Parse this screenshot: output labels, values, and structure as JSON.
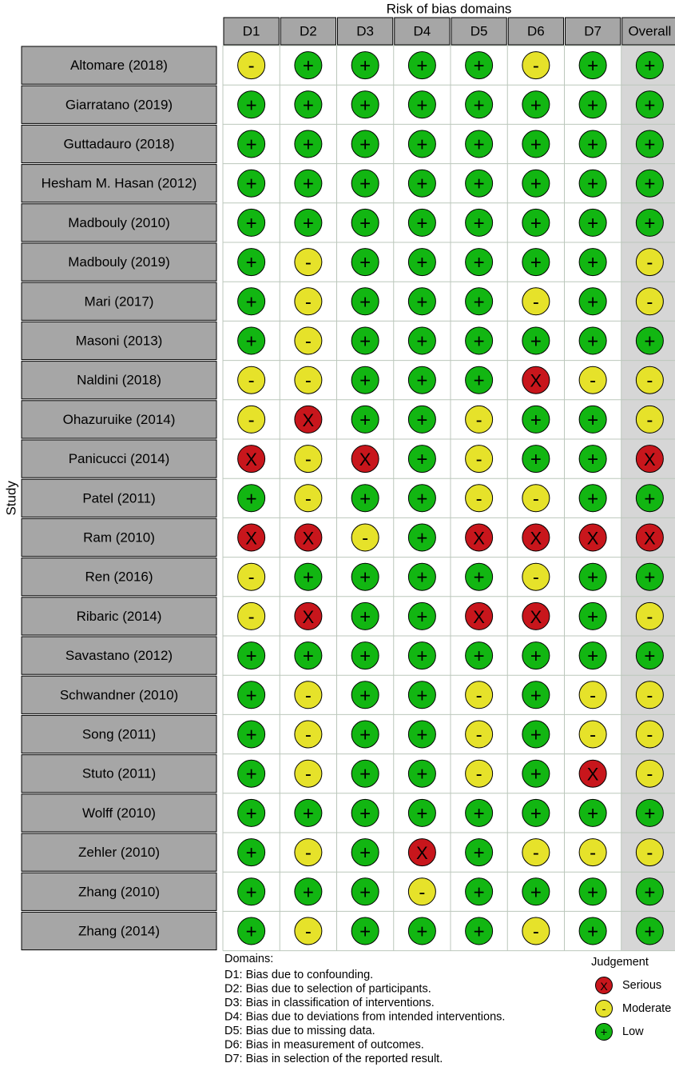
{
  "chart_data": {
    "type": "table",
    "title": "Risk of bias domains",
    "ylabel": "Study",
    "columns": [
      "D1",
      "D2",
      "D3",
      "D4",
      "D5",
      "D6",
      "D7",
      "Overall"
    ],
    "judgements": {
      "L": {
        "label": "Low",
        "symbol": "+",
        "color": "#12b612"
      },
      "M": {
        "label": "Moderate",
        "symbol": "-",
        "color": "#e6e22a"
      },
      "S": {
        "label": "Serious",
        "symbol": "X",
        "color": "#c8161c"
      }
    },
    "rows": [
      {
        "study": "Altomare (2018)",
        "values": [
          "M",
          "L",
          "L",
          "L",
          "L",
          "M",
          "L",
          "L"
        ]
      },
      {
        "study": "Giarratano (2019)",
        "values": [
          "L",
          "L",
          "L",
          "L",
          "L",
          "L",
          "L",
          "L"
        ]
      },
      {
        "study": "Guttadauro (2018)",
        "values": [
          "L",
          "L",
          "L",
          "L",
          "L",
          "L",
          "L",
          "L"
        ]
      },
      {
        "study": "Hesham M. Hasan (2012)",
        "values": [
          "L",
          "L",
          "L",
          "L",
          "L",
          "L",
          "L",
          "L"
        ]
      },
      {
        "study": "Madbouly (2010)",
        "values": [
          "L",
          "L",
          "L",
          "L",
          "L",
          "L",
          "L",
          "L"
        ]
      },
      {
        "study": "Madbouly (2019)",
        "values": [
          "L",
          "M",
          "L",
          "L",
          "L",
          "L",
          "L",
          "M"
        ]
      },
      {
        "study": "Mari (2017)",
        "values": [
          "L",
          "M",
          "L",
          "L",
          "L",
          "M",
          "L",
          "M"
        ]
      },
      {
        "study": "Masoni (2013)",
        "values": [
          "L",
          "M",
          "L",
          "L",
          "L",
          "L",
          "L",
          "L"
        ]
      },
      {
        "study": "Naldini (2018)",
        "values": [
          "M",
          "M",
          "L",
          "L",
          "L",
          "S",
          "M",
          "M"
        ]
      },
      {
        "study": "Ohazuruike (2014)",
        "values": [
          "M",
          "S",
          "L",
          "L",
          "M",
          "L",
          "L",
          "M"
        ]
      },
      {
        "study": "Panicucci (2014)",
        "values": [
          "S",
          "M",
          "S",
          "L",
          "M",
          "L",
          "L",
          "S"
        ]
      },
      {
        "study": "Patel (2011)",
        "values": [
          "L",
          "M",
          "L",
          "L",
          "M",
          "M",
          "L",
          "L"
        ]
      },
      {
        "study": "Ram (2010)",
        "values": [
          "S",
          "S",
          "M",
          "L",
          "S",
          "S",
          "S",
          "S"
        ]
      },
      {
        "study": "Ren (2016)",
        "values": [
          "M",
          "L",
          "L",
          "L",
          "L",
          "M",
          "L",
          "L"
        ]
      },
      {
        "study": "Ribaric (2014)",
        "values": [
          "M",
          "S",
          "L",
          "L",
          "S",
          "S",
          "L",
          "M"
        ]
      },
      {
        "study": "Savastano (2012)",
        "values": [
          "L",
          "L",
          "L",
          "L",
          "L",
          "L",
          "L",
          "L"
        ]
      },
      {
        "study": "Schwandner (2010)",
        "values": [
          "L",
          "M",
          "L",
          "L",
          "M",
          "L",
          "M",
          "M"
        ]
      },
      {
        "study": "Song (2011)",
        "values": [
          "L",
          "M",
          "L",
          "L",
          "M",
          "L",
          "M",
          "M"
        ]
      },
      {
        "study": "Stuto (2011)",
        "values": [
          "L",
          "M",
          "L",
          "L",
          "M",
          "L",
          "S",
          "M"
        ]
      },
      {
        "study": "Wolff (2010)",
        "values": [
          "L",
          "L",
          "L",
          "L",
          "L",
          "L",
          "L",
          "L"
        ]
      },
      {
        "study": "Zehler (2010)",
        "values": [
          "L",
          "M",
          "L",
          "S",
          "L",
          "M",
          "M",
          "M"
        ]
      },
      {
        "study": "Zhang (2010)",
        "values": [
          "L",
          "L",
          "L",
          "M",
          "L",
          "L",
          "L",
          "L"
        ]
      },
      {
        "study": "Zhang (2014)",
        "values": [
          "L",
          "M",
          "L",
          "L",
          "L",
          "M",
          "L",
          "L"
        ]
      }
    ],
    "domains_title": "Domains:",
    "domains": [
      "D1: Bias due to confounding.",
      "D2: Bias due to selection of participants.",
      "D3: Bias in classification of interventions.",
      "D4: Bias due to deviations from intended interventions.",
      "D5: Bias due to missing data.",
      "D6: Bias in measurement of outcomes.",
      "D7: Bias in selection of the reported result."
    ],
    "legend_title": "Judgement",
    "legend_order": [
      "S",
      "M",
      "L"
    ]
  }
}
